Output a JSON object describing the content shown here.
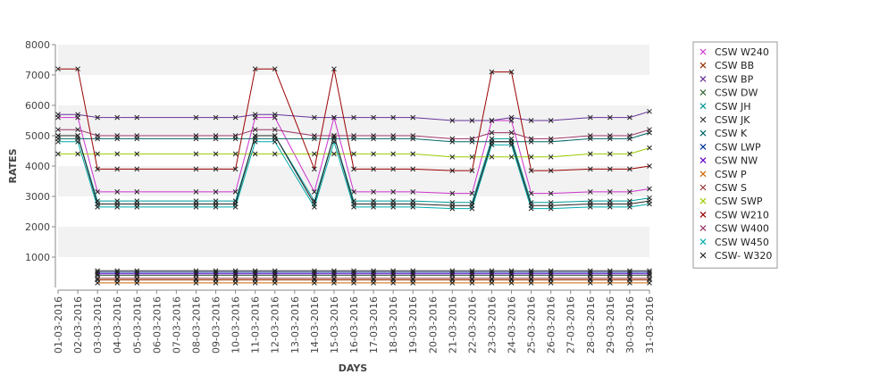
{
  "chart_data": {
    "type": "line",
    "xlabel": "DAYS",
    "ylabel": "RATES",
    "ylim": [
      0,
      8000
    ],
    "yticks": [
      "1000",
      "2000",
      "3000",
      "4000",
      "5000",
      "6000",
      "7000",
      "8000"
    ],
    "grid": "alternating horizontal bands",
    "legend_position": "right",
    "categories": [
      "01-03-2016",
      "02-03-2016",
      "03-03-2016",
      "04-03-2016",
      "05-03-2016",
      "06-03-2016",
      "07-03-2016",
      "08-03-2016",
      "09-03-2016",
      "10-03-2016",
      "11-03-2016",
      "12-03-2016",
      "13-03-2016",
      "14-03-2016",
      "15-03-2016",
      "16-03-2016",
      "17-03-2016",
      "18-03-2016",
      "19-03-2016",
      "20-03-2016",
      "21-03-2016",
      "22-03-2016",
      "23-03-2016",
      "24-03-2016",
      "25-03-2016",
      "26-03-2016",
      "27-03-2016",
      "28-03-2016",
      "29-03-2016",
      "30-03-2016",
      "31-03-2016"
    ],
    "x": [
      "01-03-2016",
      "02-03-2016",
      "03-03-2016",
      "04-03-2016",
      "05-03-2016",
      "08-03-2016",
      "09-03-2016",
      "10-03-2016",
      "11-03-2016",
      "12-03-2016",
      "14-03-2016",
      "15-03-2016",
      "16-03-2016",
      "17-03-2016",
      "18-03-2016",
      "19-03-2016",
      "21-03-2016",
      "22-03-2016",
      "23-03-2016",
      "24-03-2016",
      "25-03-2016",
      "26-03-2016",
      "28-03-2016",
      "29-03-2016",
      "30-03-2016",
      "31-03-2016"
    ],
    "series": [
      {
        "name": "CSW  W240",
        "color": "#cc33cc",
        "values": [
          5600,
          5600,
          3150,
          3150,
          3150,
          3150,
          3150,
          3150,
          5600,
          5600,
          3150,
          5600,
          3150,
          3150,
          3150,
          3150,
          3100,
          3100,
          5500,
          5500,
          3100,
          3100,
          3150,
          3150,
          3150,
          3250
        ]
      },
      {
        "name": "CSW BB",
        "color": "#993300",
        "values": [
          null,
          null,
          250,
          250,
          250,
          250,
          250,
          250,
          250,
          250,
          250,
          250,
          250,
          250,
          250,
          250,
          250,
          250,
          250,
          250,
          250,
          250,
          250,
          250,
          250,
          250
        ]
      },
      {
        "name": "CSW BP",
        "color": "#663399",
        "values": [
          5700,
          5700,
          5600,
          5600,
          5600,
          5600,
          5600,
          5600,
          5700,
          5700,
          5600,
          5600,
          5600,
          5600,
          5600,
          5600,
          5500,
          5500,
          5500,
          5600,
          5500,
          5500,
          5600,
          5600,
          5600,
          5800
        ]
      },
      {
        "name": "CSW DW",
        "color": "#336633",
        "values": [
          null,
          null,
          400,
          400,
          400,
          400,
          400,
          400,
          400,
          400,
          400,
          400,
          400,
          400,
          400,
          400,
          400,
          400,
          400,
          400,
          400,
          400,
          400,
          400,
          400,
          400
        ]
      },
      {
        "name": "CSW JH",
        "color": "#009999",
        "values": [
          5000,
          5000,
          2850,
          2850,
          2850,
          2850,
          2850,
          2850,
          5000,
          5000,
          2850,
          5000,
          2850,
          2850,
          2850,
          2850,
          2800,
          2800,
          4900,
          4900,
          2800,
          2800,
          2850,
          2850,
          2850,
          2950
        ]
      },
      {
        "name": "CSW JK",
        "color": "#333333",
        "values": [
          null,
          null,
          550,
          550,
          550,
          550,
          550,
          550,
          550,
          550,
          550,
          550,
          550,
          550,
          550,
          550,
          550,
          550,
          550,
          550,
          550,
          550,
          550,
          550,
          550,
          550
        ]
      },
      {
        "name": "CSW K",
        "color": "#006666",
        "values": [
          4900,
          4900,
          4900,
          4900,
          4900,
          4900,
          4900,
          4900,
          4900,
          4900,
          4900,
          4900,
          4900,
          4900,
          4900,
          4900,
          4800,
          4800,
          4800,
          4800,
          4800,
          4800,
          4900,
          4900,
          4900,
          5100
        ]
      },
      {
        "name": "CSW LWP",
        "color": "#003399",
        "values": [
          null,
          null,
          500,
          500,
          500,
          500,
          500,
          500,
          500,
          500,
          500,
          500,
          500,
          500,
          500,
          500,
          500,
          500,
          500,
          500,
          500,
          500,
          500,
          500,
          500,
          500
        ]
      },
      {
        "name": "CSW NW",
        "color": "#6600cc",
        "values": [
          null,
          null,
          450,
          450,
          450,
          450,
          450,
          450,
          450,
          450,
          450,
          450,
          450,
          450,
          450,
          450,
          450,
          450,
          450,
          450,
          450,
          450,
          450,
          450,
          450,
          450
        ]
      },
      {
        "name": "CSW P",
        "color": "#cc6600",
        "values": [
          null,
          null,
          150,
          150,
          150,
          150,
          150,
          150,
          150,
          150,
          150,
          150,
          150,
          150,
          150,
          150,
          150,
          150,
          150,
          150,
          150,
          150,
          150,
          150,
          150,
          150
        ]
      },
      {
        "name": "CSW S",
        "color": "#993333",
        "values": [
          null,
          null,
          300,
          300,
          300,
          300,
          300,
          300,
          300,
          300,
          300,
          300,
          300,
          300,
          300,
          300,
          300,
          300,
          300,
          300,
          300,
          300,
          300,
          300,
          300,
          300
        ]
      },
      {
        "name": "CSW SWP",
        "color": "#99cc00",
        "values": [
          4400,
          4400,
          4400,
          4400,
          4400,
          4400,
          4400,
          4400,
          4400,
          4400,
          4400,
          4400,
          4400,
          4400,
          4400,
          4400,
          4300,
          4300,
          4300,
          4300,
          4300,
          4300,
          4400,
          4400,
          4400,
          4600
        ]
      },
      {
        "name": "CSW W210",
        "color": "#990000",
        "values": [
          7200,
          7200,
          3900,
          3900,
          3900,
          3900,
          3900,
          3900,
          7200,
          7200,
          3900,
          7200,
          3900,
          3900,
          3900,
          3900,
          3850,
          3850,
          7100,
          7100,
          3850,
          3850,
          3900,
          3900,
          3900,
          4000
        ]
      },
      {
        "name": "CSW W400",
        "color": "#993366",
        "values": [
          5200,
          5200,
          5000,
          5000,
          5000,
          5000,
          5000,
          5000,
          5200,
          5200,
          5000,
          5000,
          5000,
          5000,
          5000,
          5000,
          4900,
          4900,
          5100,
          5100,
          4900,
          4900,
          5000,
          5000,
          5000,
          5200
        ]
      },
      {
        "name": "CSW W450",
        "color": "#00aaaa",
        "values": [
          4800,
          4800,
          2650,
          2650,
          2650,
          2650,
          2650,
          2650,
          4800,
          4800,
          2650,
          4800,
          2650,
          2650,
          2650,
          2650,
          2600,
          2600,
          4700,
          4700,
          2600,
          2600,
          2650,
          2650,
          2650,
          2750
        ]
      },
      {
        "name": "CSW- W320",
        "color": "#222222",
        "values": [
          5000,
          5000,
          2750,
          2750,
          2750,
          2750,
          2750,
          2750,
          5000,
          5000,
          2750,
          5000,
          2750,
          2750,
          2750,
          2750,
          2700,
          2700,
          4800,
          4800,
          2700,
          2700,
          2750,
          2750,
          2750,
          2850
        ]
      }
    ]
  }
}
